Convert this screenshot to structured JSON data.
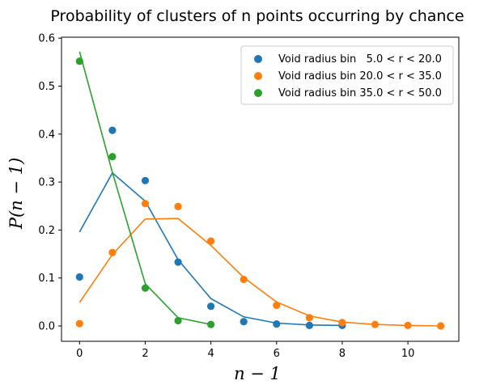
{
  "chart_data": {
    "type": "scatter",
    "title": "Probability of clusters of n points occurring by chance",
    "xlabel": "n − 1",
    "ylabel": "P(n − 1)",
    "xlim": [
      -0.55,
      11.55
    ],
    "ylim": [
      -0.032,
      0.602
    ],
    "xticks": [
      0,
      2,
      4,
      6,
      8,
      10
    ],
    "yticks": [
      0.0,
      0.1,
      0.2,
      0.3,
      0.4,
      0.5,
      0.6
    ],
    "ytick_labels": [
      "0.0",
      "0.1",
      "0.2",
      "0.3",
      "0.4",
      "0.5",
      "0.6"
    ],
    "grid": false,
    "legend_position": "upper-right",
    "series": [
      {
        "name": "Void radius bin   5.0 < r < 20.0",
        "color": "#1f77b4",
        "points_x": [
          0,
          1,
          2,
          3,
          4,
          5,
          6,
          7,
          8
        ],
        "points_y": [
          0.102,
          0.408,
          0.303,
          0.133,
          0.041,
          0.009,
          0.004,
          0.001,
          0.001
        ],
        "fit_x": [
          0,
          1,
          2,
          3,
          4,
          5,
          6,
          7,
          8
        ],
        "fit_y": [
          0.196,
          0.319,
          0.26,
          0.138,
          0.057,
          0.019,
          0.006,
          0.002,
          0.001
        ]
      },
      {
        "name": "Void radius bin 20.0 < r < 35.0",
        "color": "#ff7f0e",
        "points_x": [
          0,
          1,
          2,
          3,
          4,
          5,
          6,
          7,
          8,
          9,
          10,
          11
        ],
        "points_y": [
          0.005,
          0.153,
          0.255,
          0.249,
          0.177,
          0.097,
          0.043,
          0.017,
          0.007,
          0.003,
          0.001,
          0.0
        ],
        "fit_x": [
          0,
          1,
          2,
          3,
          4,
          5,
          6,
          7,
          8,
          9,
          10,
          11
        ],
        "fit_y": [
          0.049,
          0.149,
          0.223,
          0.224,
          0.168,
          0.101,
          0.05,
          0.021,
          0.008,
          0.003,
          0.001,
          0.0
        ]
      },
      {
        "name": "Void radius bin 35.0 < r < 50.0",
        "color": "#2ca02c",
        "points_x": [
          0,
          1,
          2,
          3,
          4
        ],
        "points_y": [
          0.552,
          0.353,
          0.079,
          0.011,
          0.003
        ],
        "fit_x": [
          0,
          1,
          2,
          3,
          4
        ],
        "fit_y": [
          0.572,
          0.32,
          0.088,
          0.017,
          0.003
        ]
      }
    ]
  }
}
